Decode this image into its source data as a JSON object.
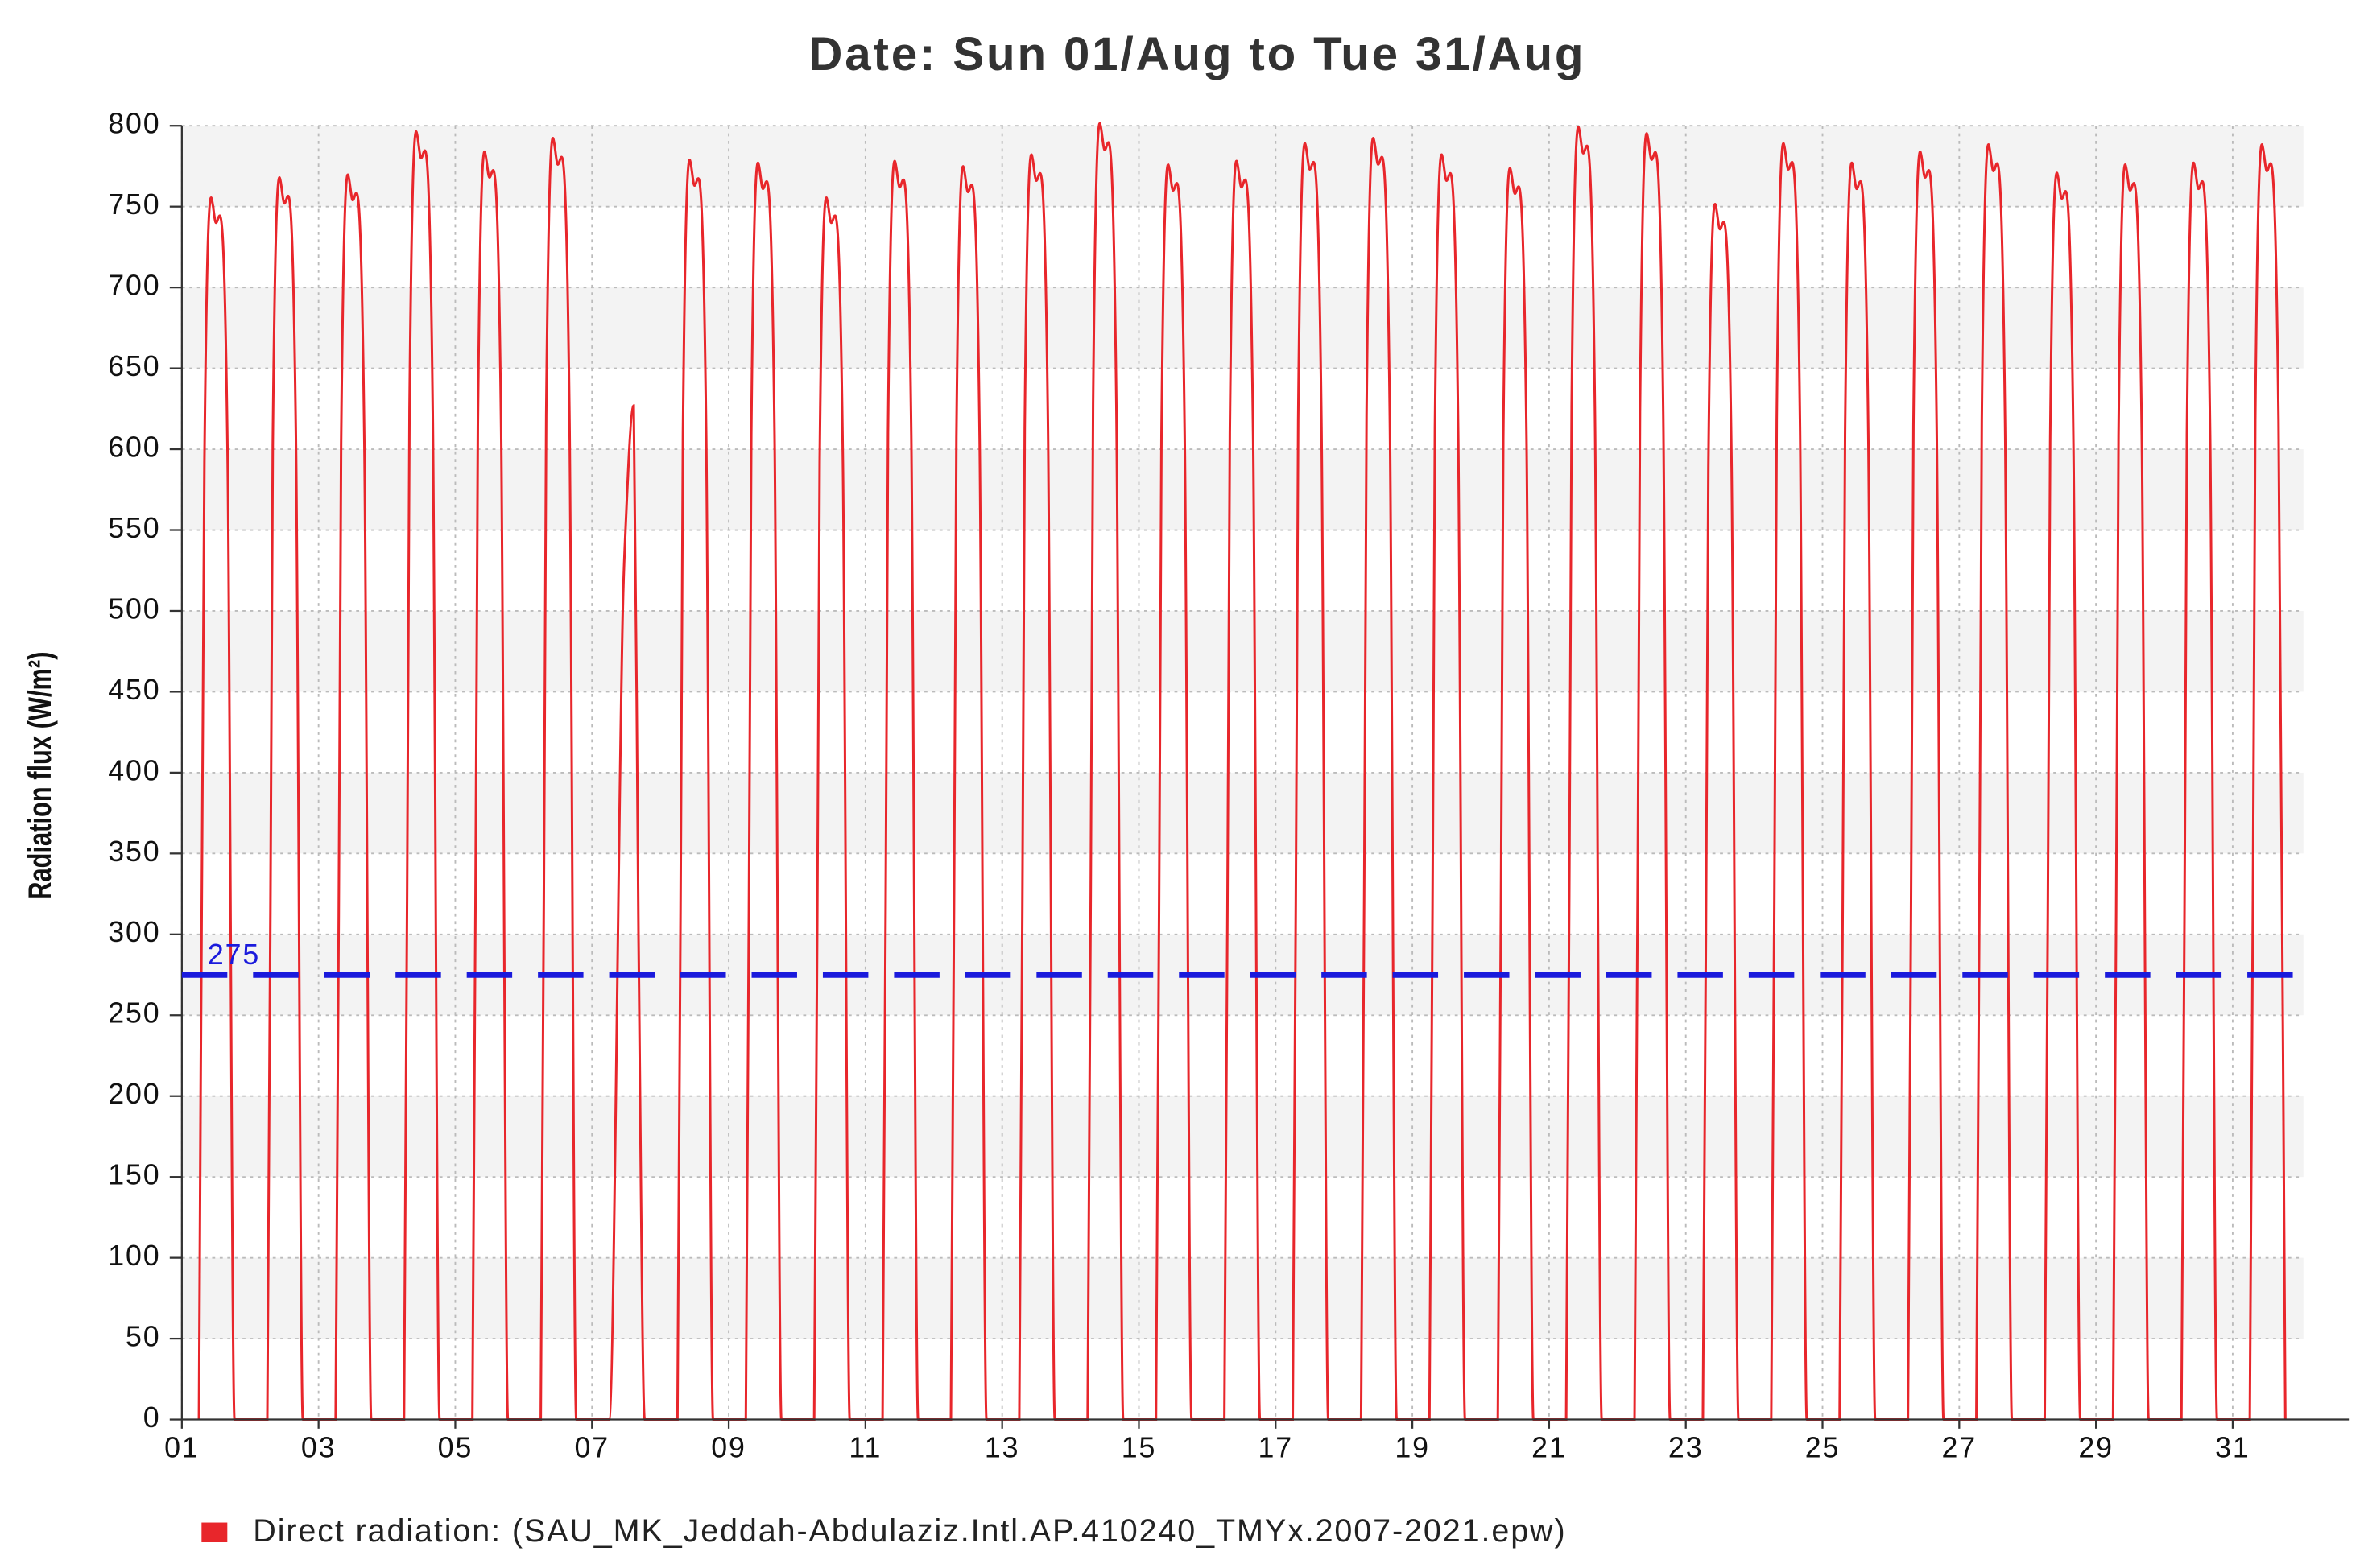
{
  "chart_data": {
    "type": "line",
    "title": "Date: Sun 01/Aug to Tue 31/Aug",
    "y_label": "Radiation flux (W/m²)",
    "threshold": 275,
    "threshold_color": "#1a1adc",
    "grid": true,
    "xlim": [
      1,
      32.3
    ],
    "ylim": [
      0,
      800
    ],
    "yticks": [
      0,
      50,
      100,
      150,
      200,
      250,
      300,
      350,
      400,
      450,
      500,
      550,
      600,
      650,
      700,
      750,
      800
    ],
    "xticks": [
      {
        "value": 1,
        "label": "01"
      },
      {
        "value": 3,
        "label": "03"
      },
      {
        "value": 5,
        "label": "05"
      },
      {
        "value": 7,
        "label": "07"
      },
      {
        "value": 9,
        "label": "09"
      },
      {
        "value": 11,
        "label": "11"
      },
      {
        "value": 13,
        "label": "13"
      },
      {
        "value": 15,
        "label": "15"
      },
      {
        "value": 17,
        "label": "17"
      },
      {
        "value": 19,
        "label": "19"
      },
      {
        "value": 21,
        "label": "21"
      },
      {
        "value": 23,
        "label": "23"
      },
      {
        "value": 25,
        "label": "25"
      },
      {
        "value": 27,
        "label": "27"
      },
      {
        "value": 29,
        "label": "29"
      },
      {
        "value": 31,
        "label": "31"
      }
    ],
    "x": [
      1.25,
      1.33,
      1.5,
      1.67,
      1.77,
      2.25,
      2.33,
      2.5,
      2.67,
      2.77,
      3.25,
      3.33,
      3.5,
      3.67,
      3.77,
      4.25,
      4.33,
      4.5,
      4.67,
      4.77,
      5.25,
      5.33,
      5.5,
      5.67,
      5.77,
      6.25,
      6.33,
      6.5,
      6.67,
      6.77,
      7.25,
      7.45,
      7.48,
      7.61,
      7.68,
      7.77,
      8.25,
      8.33,
      8.5,
      8.67,
      8.77,
      9.25,
      9.33,
      9.5,
      9.67,
      9.77,
      10.25,
      10.33,
      10.5,
      10.67,
      10.77,
      11.25,
      11.33,
      11.5,
      11.67,
      11.77,
      12.25,
      12.33,
      12.5,
      12.67,
      12.77,
      13.25,
      13.33,
      13.5,
      13.67,
      13.77,
      14.25,
      14.33,
      14.5,
      14.67,
      14.77,
      15.25,
      15.33,
      15.5,
      15.67,
      15.77,
      16.25,
      16.33,
      16.5,
      16.67,
      16.77,
      17.25,
      17.33,
      17.5,
      17.67,
      17.77,
      18.25,
      18.33,
      18.5,
      18.67,
      18.77,
      19.25,
      19.33,
      19.5,
      19.67,
      19.77,
      20.25,
      20.33,
      20.5,
      20.67,
      20.77,
      21.25,
      21.33,
      21.5,
      21.67,
      21.77,
      22.25,
      22.33,
      22.5,
      22.67,
      22.77,
      23.25,
      23.33,
      23.5,
      23.67,
      23.77,
      24.25,
      24.33,
      24.5,
      24.67,
      24.77,
      25.25,
      25.33,
      25.5,
      25.67,
      25.77,
      26.25,
      26.33,
      26.5,
      26.67,
      26.77,
      27.25,
      27.33,
      27.5,
      27.67,
      27.77,
      28.25,
      28.33,
      28.5,
      28.67,
      28.77,
      29.25,
      29.33,
      29.5,
      29.67,
      29.77,
      30.25,
      30.33,
      30.5,
      30.67,
      30.77,
      31.25,
      31.33,
      31.5,
      31.67,
      31.77
    ],
    "series": [
      {
        "name": "Direct radiation:  (SAU_MK_Jeddah-Abdulaziz.Intl.AP.410240_TMYx.2007-2021.epw)",
        "color": "#e8262b",
        "values": [
          0,
          592,
          740,
          592,
          0,
          0,
          602,
          752,
          602,
          0,
          0,
          603,
          754,
          603,
          0,
          0,
          624,
          780,
          624,
          0,
          0,
          614,
          768,
          614,
          0,
          0,
          621,
          776,
          621,
          0,
          0,
          500,
          540,
          627,
          300,
          0,
          0,
          610,
          763,
          610,
          0,
          0,
          609,
          761,
          609,
          0,
          0,
          592,
          740,
          592,
          0,
          0,
          610,
          762,
          610,
          0,
          0,
          607,
          759,
          607,
          0,
          0,
          613,
          766,
          613,
          0,
          0,
          628,
          785,
          628,
          0,
          0,
          608,
          760,
          608,
          0,
          0,
          610,
          762,
          610,
          0,
          0,
          618,
          773,
          618,
          0,
          0,
          621,
          776,
          621,
          0,
          0,
          613,
          766,
          613,
          0,
          0,
          606,
          758,
          606,
          0,
          0,
          626,
          783,
          626,
          0,
          0,
          623,
          779,
          623,
          0,
          0,
          589,
          736,
          589,
          0,
          0,
          618,
          773,
          618,
          0,
          0,
          609,
          761,
          609,
          0,
          0,
          614,
          768,
          614,
          0,
          0,
          618,
          772,
          618,
          0,
          0,
          604,
          755,
          604,
          0,
          0,
          608,
          760,
          608,
          0,
          0,
          609,
          761,
          609,
          0,
          0,
          618,
          772,
          618,
          0
        ]
      }
    ]
  }
}
